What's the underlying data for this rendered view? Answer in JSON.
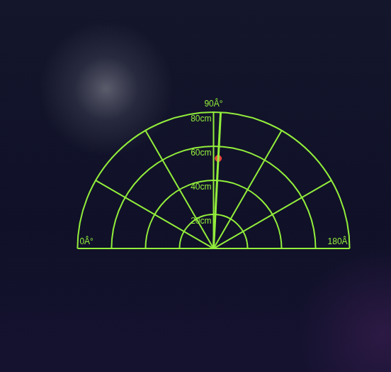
{
  "chart_data": {
    "type": "polar",
    "xlim": [
      0,
      180
    ],
    "xticks": [
      {
        "value": 0,
        "label": "0Â°"
      },
      {
        "value": 90,
        "label": "90Â°"
      },
      {
        "value": 180,
        "label": "180Â"
      }
    ],
    "angle_grid": [
      0,
      30,
      60,
      90,
      120,
      150,
      180
    ],
    "ylim": [
      0,
      80
    ],
    "yticks": [
      {
        "value": 20,
        "label": "20cm"
      },
      {
        "value": 40,
        "label": "40cm"
      },
      {
        "value": 60,
        "label": "60cm"
      },
      {
        "value": 80,
        "label": "80cm"
      }
    ],
    "grid": true,
    "sweep_angle": 93,
    "series": [
      {
        "type": "scatter",
        "color": "#e8463b",
        "x": [
          93
        ],
        "values": [
          53
        ]
      }
    ]
  }
}
